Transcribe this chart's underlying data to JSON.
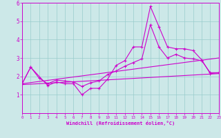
{
  "xlabel": "Windchill (Refroidissement éolien,°C)",
  "bg_color": "#cce8e8",
  "line_color": "#cc00cc",
  "grid_color": "#99cccc",
  "x_min": 0,
  "x_max": 23,
  "y_min": 0,
  "y_max": 6,
  "yticks": [
    1,
    2,
    3,
    4,
    5,
    6
  ],
  "xticks": [
    0,
    1,
    2,
    3,
    4,
    5,
    6,
    7,
    8,
    9,
    10,
    11,
    12,
    13,
    14,
    15,
    16,
    17,
    18,
    19,
    20,
    21,
    22,
    23
  ],
  "line1_x": [
    0,
    1,
    3,
    4,
    5,
    6,
    7,
    8,
    9,
    10,
    11,
    12,
    13,
    14,
    15,
    16,
    17,
    18,
    19,
    20,
    21,
    22,
    23
  ],
  "line1_y": [
    1.6,
    2.5,
    1.5,
    1.7,
    1.6,
    1.6,
    1.0,
    1.35,
    1.35,
    1.85,
    2.6,
    2.85,
    3.6,
    3.6,
    5.8,
    4.7,
    3.6,
    3.5,
    3.5,
    3.4,
    2.9,
    2.15,
    2.2
  ],
  "line2_x": [
    0,
    1,
    2,
    3,
    4,
    5,
    6,
    7,
    8,
    9,
    10,
    11,
    12,
    13,
    14,
    15,
    16,
    17,
    18,
    19,
    20,
    21,
    22,
    23
  ],
  "line2_y": [
    1.6,
    2.5,
    1.9,
    1.6,
    1.8,
    1.75,
    1.7,
    1.45,
    1.65,
    1.75,
    2.1,
    2.3,
    2.55,
    2.75,
    2.95,
    4.8,
    3.6,
    3.0,
    3.2,
    3.0,
    2.95,
    2.85,
    2.2,
    2.2
  ],
  "line3_x": [
    0,
    23
  ],
  "line3_y": [
    1.55,
    2.15
  ],
  "line4_x": [
    0,
    23
  ],
  "line4_y": [
    1.6,
    3.0
  ]
}
